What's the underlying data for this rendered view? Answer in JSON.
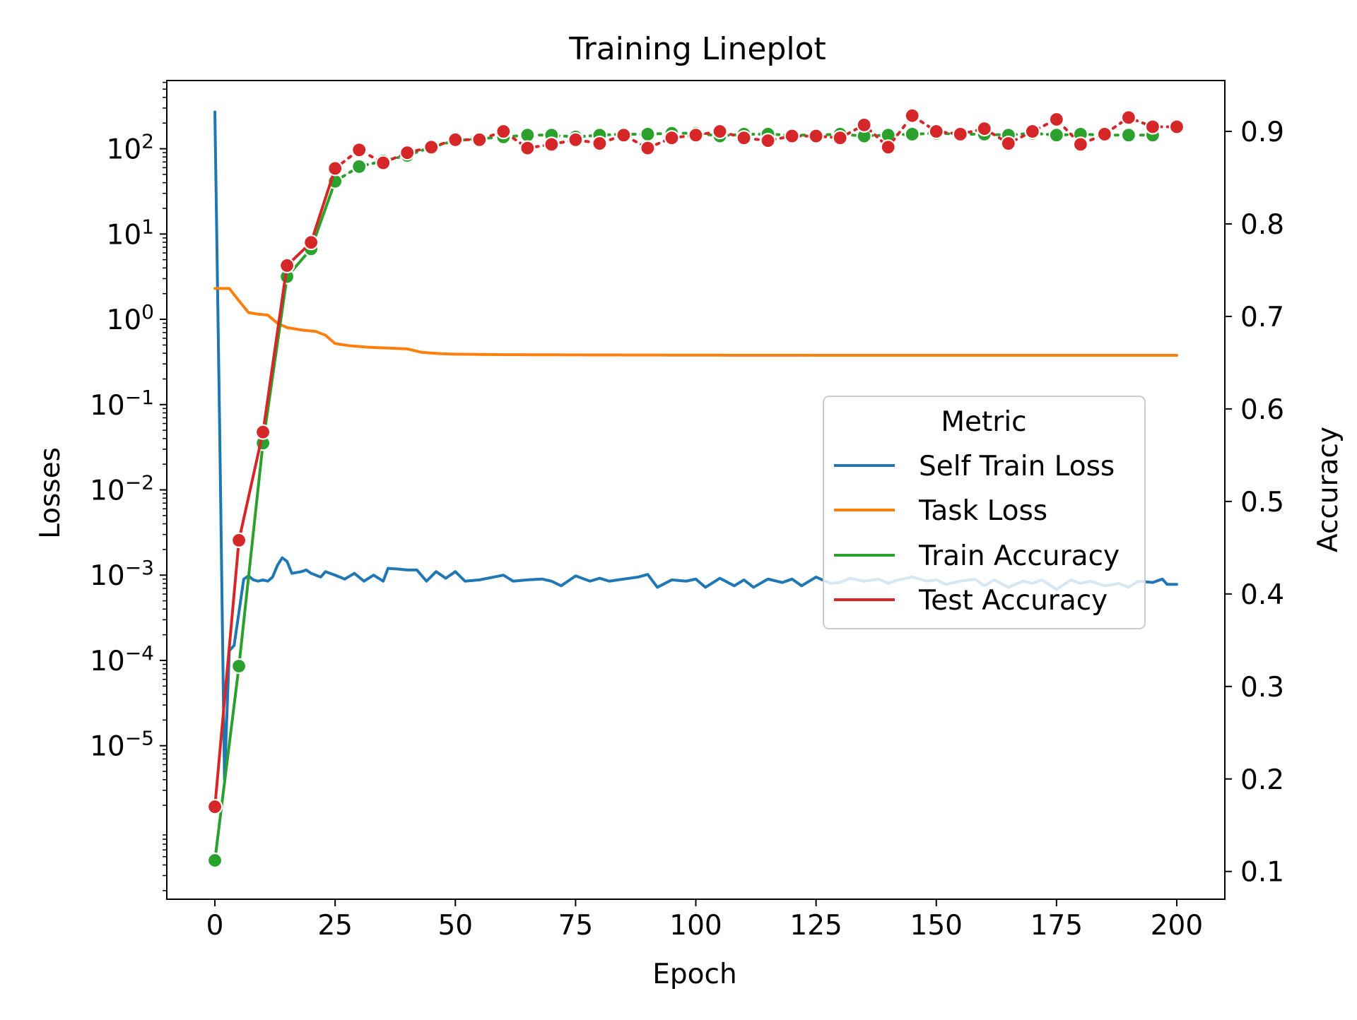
{
  "chart_data": {
    "type": "line",
    "title": "Training Lineplot",
    "xlabel": "Epoch",
    "ylabel_left": "Losses",
    "ylabel_right": "Accuracy",
    "xlim": [
      -10,
      210
    ],
    "ylim_left_log10": [
      -6.8,
      2.8
    ],
    "ylim_right": [
      0.07,
      0.955
    ],
    "x_ticks": [
      0,
      25,
      50,
      75,
      100,
      125,
      150,
      175,
      200
    ],
    "x_tick_labels": [
      "0",
      "25",
      "50",
      "75",
      "100",
      "125",
      "150",
      "175",
      "200"
    ],
    "left_ticks_log10": [
      -5,
      -4,
      -3,
      -2,
      -1,
      0,
      1,
      2
    ],
    "left_tick_labels": [
      {
        "base": "10",
        "exp": "−5"
      },
      {
        "base": "10",
        "exp": "−4"
      },
      {
        "base": "10",
        "exp": "−3"
      },
      {
        "base": "10",
        "exp": "−2"
      },
      {
        "base": "10",
        "exp": "−1"
      },
      {
        "base": "10",
        "exp": "0"
      },
      {
        "base": "10",
        "exp": "1"
      },
      {
        "base": "10",
        "exp": "2"
      }
    ],
    "right_ticks": [
      0.1,
      0.2,
      0.3,
      0.4,
      0.5,
      0.6,
      0.7,
      0.8,
      0.9
    ],
    "right_tick_labels": [
      "0.1",
      "0.2",
      "0.3",
      "0.4",
      "0.5",
      "0.6",
      "0.7",
      "0.8",
      "0.9"
    ],
    "legend": {
      "title": "Metric",
      "placement": "center-right",
      "entries": [
        "Self Train Loss",
        "Task Loss",
        "Train Accuracy",
        "Test Accuracy"
      ]
    },
    "colors": {
      "self_train_loss": "#1f77b4",
      "task_loss": "#ff7f0e",
      "train_accuracy": "#2ca02c",
      "test_accuracy": "#d62728"
    },
    "series": [
      {
        "name": "Self Train Loss",
        "axis": "left-log",
        "color": "#1f77b4",
        "style": "solid",
        "anchors": [
          [
            0,
            270
          ],
          [
            1,
            0.05
          ],
          [
            2,
            4e-06
          ],
          [
            3,
            0.00013
          ],
          [
            4,
            0.00015
          ],
          [
            6,
            0.0009
          ],
          [
            7,
            0.00098
          ],
          [
            8,
            0.00088
          ],
          [
            9,
            0.00085
          ],
          [
            10,
            0.00088
          ],
          [
            11,
            0.00085
          ],
          [
            12,
            0.00095
          ],
          [
            13,
            0.0013
          ],
          [
            14,
            0.0016
          ],
          [
            15,
            0.00145
          ],
          [
            16,
            0.00105
          ],
          [
            18,
            0.0011
          ],
          [
            19,
            0.00115
          ],
          [
            20,
            0.00105
          ],
          [
            22,
            0.00095
          ],
          [
            23,
            0.0011
          ],
          [
            25,
            0.001
          ],
          [
            27,
            0.0009
          ],
          [
            29,
            0.00105
          ],
          [
            31,
            0.00085
          ],
          [
            33,
            0.001
          ],
          [
            35,
            0.00085
          ],
          [
            36,
            0.0012
          ],
          [
            38,
            0.00118
          ],
          [
            40,
            0.00115
          ],
          [
            42,
            0.00115
          ],
          [
            44,
            0.00085
          ],
          [
            46,
            0.0011
          ],
          [
            48,
            0.00092
          ],
          [
            50,
            0.0011
          ],
          [
            52,
            0.00085
          ],
          [
            55,
            0.00088
          ],
          [
            58,
            0.00095
          ],
          [
            60,
            0.001
          ],
          [
            62,
            0.00085
          ],
          [
            65,
            0.00088
          ],
          [
            68,
            0.0009
          ],
          [
            70,
            0.00085
          ],
          [
            72,
            0.00075
          ],
          [
            75,
            0.00098
          ],
          [
            78,
            0.00085
          ],
          [
            80,
            0.00092
          ],
          [
            82,
            0.00085
          ],
          [
            85,
            0.0009
          ],
          [
            88,
            0.00095
          ],
          [
            90,
            0.00102
          ],
          [
            92,
            0.00072
          ],
          [
            95,
            0.00088
          ],
          [
            98,
            0.00085
          ],
          [
            100,
            0.0009
          ],
          [
            102,
            0.00072
          ],
          [
            105,
            0.00092
          ],
          [
            108,
            0.00075
          ],
          [
            110,
            0.00088
          ],
          [
            112,
            0.00072
          ],
          [
            115,
            0.0009
          ],
          [
            118,
            0.00082
          ],
          [
            120,
            0.0009
          ],
          [
            122,
            0.00075
          ],
          [
            125,
            0.00095
          ],
          [
            128,
            0.0008
          ],
          [
            130,
            0.00082
          ],
          [
            132,
            0.00092
          ],
          [
            135,
            0.00085
          ],
          [
            138,
            0.0009
          ],
          [
            140,
            0.0008
          ],
          [
            142,
            0.00088
          ],
          [
            145,
            0.00095
          ],
          [
            148,
            0.00085
          ],
          [
            150,
            0.00088
          ],
          [
            152,
            0.00078
          ],
          [
            155,
            0.00085
          ],
          [
            158,
            0.0009
          ],
          [
            160,
            0.00075
          ],
          [
            162,
            0.00088
          ],
          [
            165,
            0.00072
          ],
          [
            168,
            0.00085
          ],
          [
            170,
            0.0008
          ],
          [
            172,
            0.00088
          ],
          [
            175,
            0.00068
          ],
          [
            178,
            0.00088
          ],
          [
            180,
            0.0008
          ],
          [
            182,
            0.00085
          ],
          [
            185,
            0.00075
          ],
          [
            188,
            0.0008
          ],
          [
            190,
            0.00072
          ],
          [
            192,
            0.00085
          ],
          [
            195,
            0.00082
          ],
          [
            197,
            0.0009
          ],
          [
            198,
            0.00078
          ],
          [
            200,
            0.00078
          ]
        ]
      },
      {
        "name": "Task Loss",
        "axis": "left-log",
        "color": "#ff7f0e",
        "style": "solid",
        "anchors": [
          [
            0,
            2.3
          ],
          [
            3,
            2.3
          ],
          [
            5,
            1.65
          ],
          [
            7,
            1.2
          ],
          [
            9,
            1.15
          ],
          [
            11,
            1.12
          ],
          [
            13,
            0.9
          ],
          [
            15,
            0.8
          ],
          [
            18,
            0.75
          ],
          [
            21,
            0.72
          ],
          [
            23,
            0.65
          ],
          [
            25,
            0.52
          ],
          [
            28,
            0.49
          ],
          [
            32,
            0.47
          ],
          [
            36,
            0.46
          ],
          [
            40,
            0.45
          ],
          [
            43,
            0.41
          ],
          [
            47,
            0.395
          ],
          [
            50,
            0.39
          ],
          [
            60,
            0.385
          ],
          [
            80,
            0.382
          ],
          [
            100,
            0.38
          ],
          [
            120,
            0.379
          ],
          [
            150,
            0.378
          ],
          [
            180,
            0.378
          ],
          [
            200,
            0.378
          ]
        ]
      },
      {
        "name": "Train Accuracy",
        "axis": "right",
        "color": "#2ca02c",
        "style": "solid-then-dotted",
        "x": [
          0,
          5,
          10,
          15,
          20,
          25,
          30,
          35,
          40,
          45,
          50,
          55,
          60,
          65,
          70,
          75,
          80,
          85,
          90,
          95,
          100,
          105,
          110,
          115,
          120,
          125,
          130,
          135,
          140,
          145,
          150,
          155,
          160,
          165,
          170,
          175,
          180,
          185,
          190,
          195
        ],
        "values": [
          0.112,
          0.322,
          0.563,
          0.743,
          0.773,
          0.846,
          0.862,
          0.868,
          0.874,
          0.883,
          0.89,
          0.892,
          0.894,
          0.896,
          0.896,
          0.894,
          0.896,
          0.897,
          0.897,
          0.898,
          0.898,
          0.895,
          0.897,
          0.897,
          0.896,
          0.896,
          0.897,
          0.895,
          0.896,
          0.897,
          0.898,
          0.897,
          0.897,
          0.896,
          0.898,
          0.896,
          0.897,
          0.896,
          0.896,
          0.896
        ]
      },
      {
        "name": "Test Accuracy",
        "axis": "right",
        "color": "#d62728",
        "style": "solid-then-dotted",
        "x": [
          0,
          5,
          10,
          15,
          20,
          25,
          30,
          35,
          40,
          45,
          50,
          55,
          60,
          65,
          70,
          75,
          80,
          85,
          90,
          95,
          100,
          105,
          110,
          115,
          120,
          125,
          130,
          135,
          140,
          145,
          150,
          155,
          160,
          165,
          170,
          175,
          180,
          185,
          190,
          195,
          200
        ],
        "values": [
          0.17,
          0.458,
          0.575,
          0.755,
          0.78,
          0.86,
          0.88,
          0.866,
          0.877,
          0.883,
          0.891,
          0.891,
          0.9,
          0.882,
          0.886,
          0.891,
          0.887,
          0.896,
          0.882,
          0.893,
          0.896,
          0.9,
          0.893,
          0.89,
          0.895,
          0.895,
          0.893,
          0.907,
          0.883,
          0.917,
          0.9,
          0.897,
          0.903,
          0.887,
          0.9,
          0.913,
          0.886,
          0.897,
          0.915,
          0.905,
          0.905
        ]
      }
    ]
  }
}
